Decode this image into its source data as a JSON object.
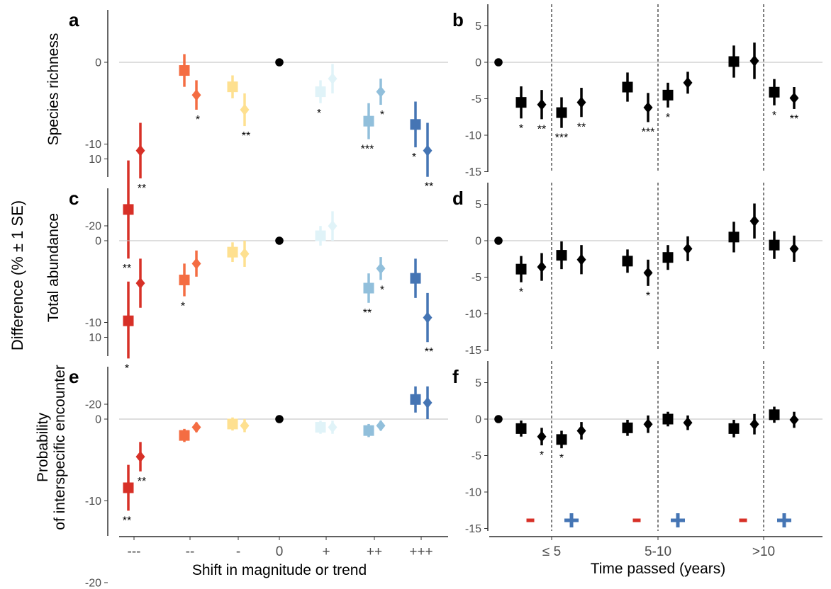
{
  "chart_data": {
    "type": "scatter",
    "y_axis_title": "Difference (% ± 1 SE)",
    "colors": {
      "---": "#d73027",
      "--": "#f46d43",
      "-": "#fee090",
      "0": "#000000",
      "+": "#e0f3f8",
      "++": "#91bfdb",
      "+++": "#4575b4",
      "right_panels": "#000000",
      "minus_marker": "#d73027",
      "plus_marker": "#4575b4",
      "zero_line": "#bdbdbd"
    },
    "marker_shapes": {
      "first": "square",
      "second": "diamond",
      "zero": "circle"
    },
    "left_x_categories": [
      "---",
      "--",
      "-",
      "0",
      "+",
      "++",
      "+++"
    ],
    "left_x_title": "Shift in magnitude or trend",
    "left_ylim": [
      -30,
      12
    ],
    "left_yticks": [
      10,
      0,
      -10,
      -20
    ],
    "right_x_groups": [
      "≤ 5",
      "5-10",
      ">10"
    ],
    "right_x_title": "Time passed (years)",
    "right_ylim": [
      -16,
      7
    ],
    "right_yticks": [
      5,
      0,
      -5,
      -10,
      -15
    ],
    "sign_markers": [
      "-",
      "+"
    ],
    "panels": [
      {
        "id": "a",
        "label": "a",
        "side": "left",
        "row": 0,
        "ylabel": "Species richness",
        "points": [
          {
            "cat": "---",
            "shape": "square",
            "y": -18,
            "lo": -24,
            "hi": -12,
            "stars": "**"
          },
          {
            "cat": "---",
            "shape": "diamond",
            "y": -10.8,
            "lo": -14.2,
            "hi": -7.4,
            "stars": "**"
          },
          {
            "cat": "--",
            "shape": "square",
            "y": -1,
            "lo": -3,
            "hi": 1,
            "stars": ""
          },
          {
            "cat": "--",
            "shape": "diamond",
            "y": -4,
            "lo": -5.8,
            "hi": -2.2,
            "stars": "*"
          },
          {
            "cat": "-",
            "shape": "square",
            "y": -3,
            "lo": -4.4,
            "hi": -1.6,
            "stars": ""
          },
          {
            "cat": "-",
            "shape": "diamond",
            "y": -5.8,
            "lo": -7.8,
            "hi": -3.8,
            "stars": "**"
          },
          {
            "cat": "0",
            "shape": "circle",
            "y": 0,
            "lo": 0,
            "hi": 0,
            "stars": ""
          },
          {
            "cat": "+",
            "shape": "square",
            "y": -3.6,
            "lo": -5,
            "hi": -2.2,
            "stars": "*"
          },
          {
            "cat": "+",
            "shape": "diamond",
            "y": -2,
            "lo": -3.8,
            "hi": -0.2,
            "stars": ""
          },
          {
            "cat": "++",
            "shape": "square",
            "y": -7.2,
            "lo": -9.4,
            "hi": -5,
            "stars": "***"
          },
          {
            "cat": "++",
            "shape": "diamond",
            "y": -3.6,
            "lo": -5.2,
            "hi": -2,
            "stars": "*"
          },
          {
            "cat": "+++",
            "shape": "square",
            "y": -7.6,
            "lo": -10.4,
            "hi": -4.8,
            "stars": "*"
          },
          {
            "cat": "+++",
            "shape": "diamond",
            "y": -10.8,
            "lo": -14,
            "hi": -7.4,
            "stars": "**"
          }
        ]
      },
      {
        "id": "c",
        "label": "c",
        "side": "left",
        "row": 1,
        "ylabel": "Total abundance",
        "points": [
          {
            "cat": "---",
            "shape": "square",
            "y": -9.8,
            "lo": -14.4,
            "hi": -5,
            "stars": "*"
          },
          {
            "cat": "---",
            "shape": "diamond",
            "y": -5.2,
            "lo": -8.2,
            "hi": -2.2,
            "stars": ""
          },
          {
            "cat": "--",
            "shape": "square",
            "y": -4.8,
            "lo": -6.8,
            "hi": -2.8,
            "stars": "*"
          },
          {
            "cat": "--",
            "shape": "diamond",
            "y": -2.8,
            "lo": -4.4,
            "hi": -1.2,
            "stars": ""
          },
          {
            "cat": "-",
            "shape": "square",
            "y": -1.4,
            "lo": -2.6,
            "hi": -0.2,
            "stars": ""
          },
          {
            "cat": "-",
            "shape": "diamond",
            "y": -1.6,
            "lo": -3.2,
            "hi": 0,
            "stars": ""
          },
          {
            "cat": "0",
            "shape": "circle",
            "y": 0,
            "lo": 0,
            "hi": 0,
            "stars": ""
          },
          {
            "cat": "+",
            "shape": "square",
            "y": 0.6,
            "lo": -0.6,
            "hi": 1.8,
            "stars": ""
          },
          {
            "cat": "+",
            "shape": "diamond",
            "y": 1.8,
            "lo": 0,
            "hi": 3.6,
            "stars": ""
          },
          {
            "cat": "++",
            "shape": "square",
            "y": -5.8,
            "lo": -7.6,
            "hi": -4,
            "stars": "**"
          },
          {
            "cat": "++",
            "shape": "diamond",
            "y": -3.4,
            "lo": -4.8,
            "hi": -2,
            "stars": "*"
          },
          {
            "cat": "+++",
            "shape": "square",
            "y": -4.6,
            "lo": -7,
            "hi": -2.2,
            "stars": ""
          },
          {
            "cat": "+++",
            "shape": "diamond",
            "y": -9.4,
            "lo": -12.4,
            "hi": -6.4,
            "stars": "**"
          }
        ]
      },
      {
        "id": "e",
        "label": "e",
        "side": "left",
        "row": 2,
        "ylabel": [
          "Probability",
          "of interspecific encounter"
        ],
        "points": [
          {
            "cat": "---",
            "shape": "square",
            "y": -8.4,
            "lo": -11.2,
            "hi": -5.6,
            "stars": "**"
          },
          {
            "cat": "---",
            "shape": "diamond",
            "y": -4.6,
            "lo": -6.4,
            "hi": -2.8,
            "stars": "**"
          },
          {
            "cat": "--",
            "shape": "square",
            "y": -2,
            "lo": -2.8,
            "hi": -1.2,
            "stars": ""
          },
          {
            "cat": "--",
            "shape": "diamond",
            "y": -1,
            "lo": -1.6,
            "hi": -0.4,
            "stars": ""
          },
          {
            "cat": "-",
            "shape": "square",
            "y": -0.6,
            "lo": -1.4,
            "hi": 0.2,
            "stars": ""
          },
          {
            "cat": "-",
            "shape": "diamond",
            "y": -0.8,
            "lo": -1.6,
            "hi": 0,
            "stars": ""
          },
          {
            "cat": "0",
            "shape": "circle",
            "y": 0,
            "lo": 0,
            "hi": 0,
            "stars": ""
          },
          {
            "cat": "+",
            "shape": "square",
            "y": -1,
            "lo": -1.8,
            "hi": -0.2,
            "stars": ""
          },
          {
            "cat": "+",
            "shape": "diamond",
            "y": -1,
            "lo": -1.8,
            "hi": -0.2,
            "stars": ""
          },
          {
            "cat": "++",
            "shape": "square",
            "y": -1.4,
            "lo": -2.2,
            "hi": -0.6,
            "stars": ""
          },
          {
            "cat": "++",
            "shape": "diamond",
            "y": -0.8,
            "lo": -1.4,
            "hi": -0.2,
            "stars": ""
          },
          {
            "cat": "+++",
            "shape": "square",
            "y": 2.4,
            "lo": 0.8,
            "hi": 4,
            "stars": ""
          },
          {
            "cat": "+++",
            "shape": "diamond",
            "y": 2,
            "lo": 0,
            "hi": 4,
            "stars": ""
          }
        ]
      },
      {
        "id": "b",
        "label": "b",
        "side": "right",
        "row": 0,
        "zero_point": 0,
        "points": [
          {
            "group": "≤ 5",
            "sign": "-",
            "shape": "square",
            "y": -5.5,
            "lo": -7.7,
            "hi": -3.3,
            "stars": "*"
          },
          {
            "group": "≤ 5",
            "sign": "-",
            "shape": "diamond",
            "y": -5.8,
            "lo": -7.8,
            "hi": -3.8,
            "stars": "**"
          },
          {
            "group": "≤ 5",
            "sign": "+",
            "shape": "square",
            "y": -6.9,
            "lo": -9.0,
            "hi": -4.8,
            "stars": "***"
          },
          {
            "group": "≤ 5",
            "sign": "+",
            "shape": "diamond",
            "y": -5.5,
            "lo": -7.5,
            "hi": -3.5,
            "stars": "**"
          },
          {
            "group": "5-10",
            "sign": "-",
            "shape": "square",
            "y": -3.4,
            "lo": -5.4,
            "hi": -1.4,
            "stars": ""
          },
          {
            "group": "5-10",
            "sign": "-",
            "shape": "diamond",
            "y": -6.2,
            "lo": -8.2,
            "hi": -4.2,
            "stars": "***"
          },
          {
            "group": "5-10",
            "sign": "+",
            "shape": "square",
            "y": -4.5,
            "lo": -6.2,
            "hi": -2.8,
            "stars": "*"
          },
          {
            "group": "5-10",
            "sign": "+",
            "shape": "diamond",
            "y": -2.8,
            "lo": -4.3,
            "hi": -1.3,
            "stars": ""
          },
          {
            "group": ">10",
            "sign": "-",
            "shape": "square",
            "y": 0.1,
            "lo": -2.1,
            "hi": 2.3,
            "stars": ""
          },
          {
            "group": ">10",
            "sign": "-",
            "shape": "diamond",
            "y": 0.2,
            "lo": -2.3,
            "hi": 2.7,
            "stars": ""
          },
          {
            "group": ">10",
            "sign": "+",
            "shape": "square",
            "y": -4.1,
            "lo": -5.9,
            "hi": -2.3,
            "stars": "*"
          },
          {
            "group": ">10",
            "sign": "+",
            "shape": "diamond",
            "y": -4.9,
            "lo": -6.4,
            "hi": -3.4,
            "stars": "**"
          }
        ]
      },
      {
        "id": "d",
        "label": "d",
        "side": "right",
        "row": 1,
        "zero_point": 0,
        "points": [
          {
            "group": "≤ 5",
            "sign": "-",
            "shape": "square",
            "y": -3.9,
            "lo": -5.7,
            "hi": -2.1,
            "stars": "*"
          },
          {
            "group": "≤ 5",
            "sign": "-",
            "shape": "diamond",
            "y": -3.6,
            "lo": -5.5,
            "hi": -1.7,
            "stars": ""
          },
          {
            "group": "≤ 5",
            "sign": "+",
            "shape": "square",
            "y": -2,
            "lo": -3.9,
            "hi": -0.1,
            "stars": ""
          },
          {
            "group": "≤ 5",
            "sign": "+",
            "shape": "diamond",
            "y": -2.6,
            "lo": -4.6,
            "hi": -0.6,
            "stars": ""
          },
          {
            "group": "5-10",
            "sign": "-",
            "shape": "square",
            "y": -2.8,
            "lo": -4.4,
            "hi": -1.2,
            "stars": ""
          },
          {
            "group": "5-10",
            "sign": "-",
            "shape": "diamond",
            "y": -4.4,
            "lo": -6.2,
            "hi": -2.6,
            "stars": "*"
          },
          {
            "group": "5-10",
            "sign": "+",
            "shape": "square",
            "y": -2.3,
            "lo": -4.0,
            "hi": -0.6,
            "stars": ""
          },
          {
            "group": "5-10",
            "sign": "+",
            "shape": "diamond",
            "y": -1.1,
            "lo": -2.8,
            "hi": 0.6,
            "stars": ""
          },
          {
            "group": ">10",
            "sign": "-",
            "shape": "square",
            "y": 0.5,
            "lo": -1.6,
            "hi": 2.6,
            "stars": ""
          },
          {
            "group": ">10",
            "sign": "-",
            "shape": "diamond",
            "y": 2.7,
            "lo": 0.3,
            "hi": 5.1,
            "stars": ""
          },
          {
            "group": ">10",
            "sign": "+",
            "shape": "square",
            "y": -0.6,
            "lo": -2.5,
            "hi": 1.3,
            "stars": ""
          },
          {
            "group": ">10",
            "sign": "+",
            "shape": "diamond",
            "y": -1.1,
            "lo": -2.9,
            "hi": 0.7,
            "stars": ""
          }
        ]
      },
      {
        "id": "f",
        "label": "f",
        "side": "right",
        "row": 2,
        "zero_point": 0,
        "points": [
          {
            "group": "≤ 5",
            "sign": "-",
            "shape": "square",
            "y": -1.3,
            "lo": -2.4,
            "hi": -0.2,
            "stars": ""
          },
          {
            "group": "≤ 5",
            "sign": "-",
            "shape": "diamond",
            "y": -2.4,
            "lo": -3.6,
            "hi": -1.2,
            "stars": "*"
          },
          {
            "group": "≤ 5",
            "sign": "+",
            "shape": "square",
            "y": -2.8,
            "lo": -4.0,
            "hi": -1.6,
            "stars": "*"
          },
          {
            "group": "≤ 5",
            "sign": "+",
            "shape": "diamond",
            "y": -1.6,
            "lo": -2.8,
            "hi": -0.4,
            "stars": ""
          },
          {
            "group": "5-10",
            "sign": "-",
            "shape": "square",
            "y": -1.2,
            "lo": -2.3,
            "hi": -0.1,
            "stars": ""
          },
          {
            "group": "5-10",
            "sign": "-",
            "shape": "diamond",
            "y": -0.7,
            "lo": -1.9,
            "hi": 0.5,
            "stars": ""
          },
          {
            "group": "5-10",
            "sign": "+",
            "shape": "square",
            "y": 0,
            "lo": -1.0,
            "hi": 1.0,
            "stars": ""
          },
          {
            "group": "5-10",
            "sign": "+",
            "shape": "diamond",
            "y": -0.5,
            "lo": -1.5,
            "hi": 0.5,
            "stars": ""
          },
          {
            "group": ">10",
            "sign": "-",
            "shape": "square",
            "y": -1.3,
            "lo": -2.5,
            "hi": -0.1,
            "stars": ""
          },
          {
            "group": ">10",
            "sign": "-",
            "shape": "diamond",
            "y": -0.7,
            "lo": -2.1,
            "hi": 0.7,
            "stars": ""
          },
          {
            "group": ">10",
            "sign": "+",
            "shape": "square",
            "y": 0.6,
            "lo": -0.5,
            "hi": 1.7,
            "stars": ""
          },
          {
            "group": ">10",
            "sign": "+",
            "shape": "diamond",
            "y": -0.1,
            "lo": -1.2,
            "hi": 1.0,
            "stars": ""
          }
        ]
      }
    ]
  }
}
